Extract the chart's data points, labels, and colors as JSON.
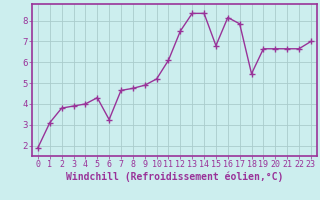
{
  "x": [
    0,
    1,
    2,
    3,
    4,
    5,
    6,
    7,
    8,
    9,
    10,
    11,
    12,
    13,
    14,
    15,
    16,
    17,
    18,
    19,
    20,
    21,
    22,
    23
  ],
  "y": [
    1.9,
    3.1,
    3.8,
    3.9,
    4.0,
    4.3,
    3.25,
    4.65,
    4.75,
    4.9,
    5.2,
    6.1,
    7.5,
    8.35,
    8.35,
    6.8,
    8.15,
    7.85,
    5.45,
    6.65,
    6.65,
    6.65,
    6.65,
    7.0
  ],
  "line_color": "#993399",
  "marker": "+",
  "bg_color": "#cceeee",
  "grid_color": "#aacccc",
  "spine_color": "#993399",
  "xlabel": "Windchill (Refroidissement éolien,°C)",
  "xlim": [
    -0.5,
    23.5
  ],
  "ylim": [
    1.5,
    8.8
  ],
  "yticks": [
    2,
    3,
    4,
    5,
    6,
    7,
    8
  ],
  "xticks": [
    0,
    1,
    2,
    3,
    4,
    5,
    6,
    7,
    8,
    9,
    10,
    11,
    12,
    13,
    14,
    15,
    16,
    17,
    18,
    19,
    20,
    21,
    22,
    23
  ],
  "font_color": "#993399",
  "tick_fontsize": 6.0,
  "xlabel_fontsize": 7.0,
  "linewidth": 1.0,
  "markersize": 4,
  "grid_linewidth": 0.6
}
